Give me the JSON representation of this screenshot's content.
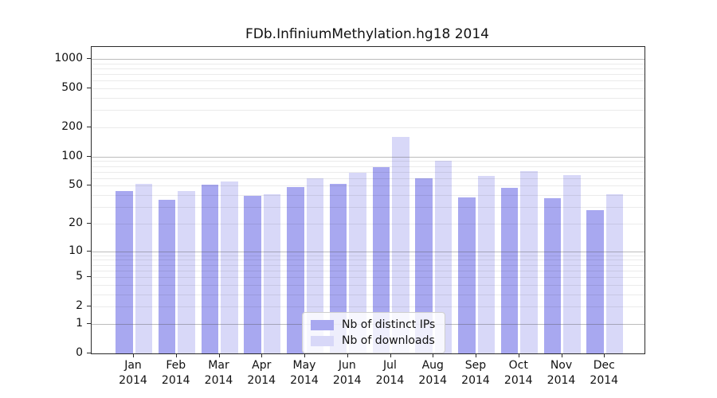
{
  "chart_data": {
    "type": "bar",
    "title": "FDb.InfiniumMethylation.hg18 2014",
    "categories": [
      "Jan",
      "Feb",
      "Mar",
      "Apr",
      "May",
      "Jun",
      "Jul",
      "Aug",
      "Sep",
      "Oct",
      "Nov",
      "Dec"
    ],
    "year_label": "2014",
    "series": [
      {
        "name": "Nb of distinct IPs",
        "color": "#a8a8f0",
        "values": [
          44,
          36,
          51,
          39,
          49,
          52,
          78,
          60,
          38,
          48,
          37,
          28
        ]
      },
      {
        "name": "Nb of downloads",
        "color": "#d8d8f8",
        "values": [
          52,
          44,
          56,
          41,
          60,
          68,
          161,
          91,
          63,
          71,
          65,
          41
        ]
      }
    ],
    "xlabel": "",
    "ylabel": "",
    "yscale": "log1p",
    "yticks": [
      0,
      1,
      2,
      5,
      10,
      20,
      50,
      100,
      200,
      500,
      1000
    ],
    "ylim": [
      0,
      1320
    ],
    "grid": "horizontal major (powers of 10) + minor (2-9 per decade)",
    "legend_position": "inside bottom-center"
  }
}
